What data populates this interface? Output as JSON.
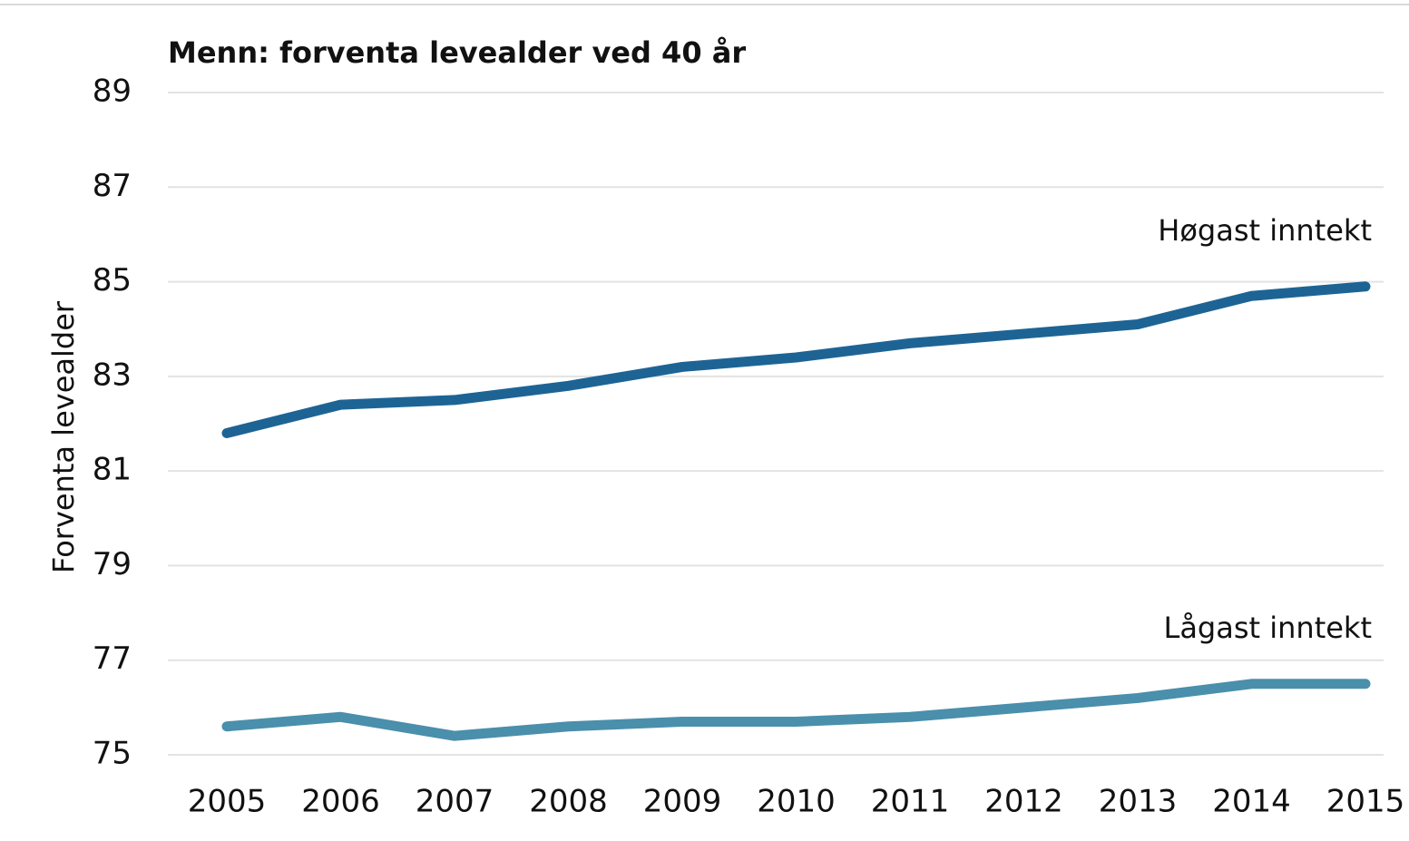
{
  "chart_data": {
    "type": "line",
    "title": "Menn: forventa levealder ved 40 år",
    "y_label": "Forventa levealder",
    "categories": [
      "2005",
      "2006",
      "2007",
      "2008",
      "2009",
      "2010",
      "2011",
      "2012",
      "2013",
      "2014",
      "2015"
    ],
    "series": [
      {
        "name": "Høgast inntekt",
        "color": "#1d6495",
        "values": [
          81.8,
          82.4,
          82.5,
          82.8,
          83.2,
          83.4,
          83.7,
          83.9,
          84.1,
          84.7,
          84.9
        ]
      },
      {
        "name": "Lågast inntekt",
        "color": "#4a8fab",
        "values": [
          75.6,
          75.8,
          75.4,
          75.6,
          75.7,
          75.7,
          75.8,
          76.0,
          76.2,
          76.5,
          76.5
        ]
      }
    ],
    "ylim": [
      75,
      89
    ],
    "yticks": [
      75,
      77,
      79,
      81,
      83,
      85,
      87,
      89
    ],
    "grid": true
  }
}
